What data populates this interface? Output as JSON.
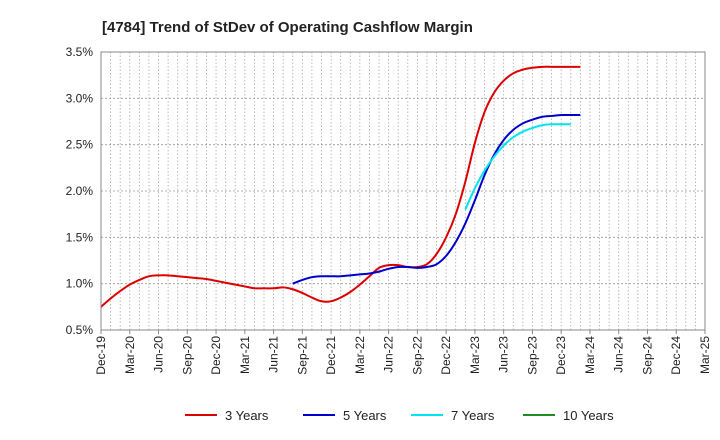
{
  "chart_data": {
    "type": "line",
    "title": "[4784]  Trend of StDev of Operating Cashflow Margin",
    "xlabel": "",
    "ylabel": "",
    "ylim": [
      0.5,
      3.5
    ],
    "yticks": [
      0.5,
      1.0,
      1.5,
      2.0,
      2.5,
      3.0,
      3.5
    ],
    "ytick_labels": [
      "0.5%",
      "1.0%",
      "1.5%",
      "2.0%",
      "2.5%",
      "3.0%",
      "3.5%"
    ],
    "xtick_labels": [
      "Dec-19",
      "Mar-20",
      "Jun-20",
      "Sep-20",
      "Dec-20",
      "Mar-21",
      "Jun-21",
      "Sep-21",
      "Dec-21",
      "Mar-22",
      "Jun-22",
      "Sep-22",
      "Dec-22",
      "Mar-23",
      "Jun-23",
      "Sep-23",
      "Dec-23",
      "Mar-24",
      "Jun-24",
      "Sep-24",
      "Dec-24",
      "Mar-25"
    ],
    "grid": true,
    "legend_position": "bottom",
    "series": [
      {
        "name": "3 Years",
        "color": "#dd0000",
        "start_index": 0,
        "values": [
          0.75,
          0.84,
          0.92,
          0.99,
          1.04,
          1.08,
          1.09,
          1.09,
          1.08,
          1.07,
          1.06,
          1.05,
          1.03,
          1.01,
          0.99,
          0.97,
          0.95,
          0.95,
          0.95,
          0.96,
          0.94,
          0.9,
          0.85,
          0.81,
          0.81,
          0.85,
          0.91,
          0.99,
          1.08,
          1.17,
          1.2,
          1.2,
          1.18,
          1.18,
          1.21,
          1.32,
          1.5,
          1.75,
          2.1,
          2.52,
          2.85,
          3.06,
          3.19,
          3.27,
          3.31,
          3.33,
          3.34,
          3.34,
          3.34,
          3.34,
          3.34
        ]
      },
      {
        "name": "5 Years",
        "color": "#0000cc",
        "start_index": 20,
        "values": [
          1.0,
          1.04,
          1.07,
          1.08,
          1.08,
          1.08,
          1.09,
          1.1,
          1.11,
          1.13,
          1.16,
          1.18,
          1.18,
          1.17,
          1.18,
          1.21,
          1.3,
          1.45,
          1.65,
          1.9,
          2.17,
          2.39,
          2.55,
          2.66,
          2.73,
          2.77,
          2.8,
          2.81,
          2.82,
          2.82,
          2.82
        ]
      },
      {
        "name": "7 Years",
        "color": "#00e5ee",
        "start_index": 38,
        "values": [
          1.8,
          2.03,
          2.22,
          2.37,
          2.49,
          2.58,
          2.64,
          2.68,
          2.71,
          2.72,
          2.72,
          2.72
        ]
      },
      {
        "name": "10 Years",
        "color": "#228b22",
        "start_index": 0,
        "values": []
      }
    ]
  }
}
